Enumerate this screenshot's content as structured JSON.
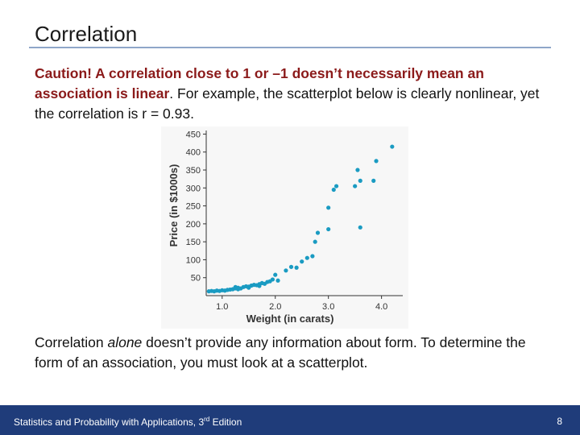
{
  "slide": {
    "title": "Correlation",
    "para1_bold": "Caution! A correlation close to 1 or –1 doesn’t necessarily mean an association is linear",
    "para1_rest": ". For example, the scatterplot below is clearly nonlinear, yet the correlation is r = 0.93.",
    "para2_a": "Correlation ",
    "para2_em": "alone",
    "para2_b": " doesn’t provide any information about form. To determine the form of an association, you must look at a scatterplot."
  },
  "footer": {
    "text_main": "Statistics and Probability with Applications, 3",
    "text_sup": "rd",
    "text_end": " Edition",
    "page": "8"
  },
  "colors": {
    "accent": "#1f3c7a",
    "caution": "#8b1a1a",
    "points": "#1a9bc2"
  },
  "chart_data": {
    "type": "scatter",
    "xlabel": "Weight (in carats)",
    "ylabel": "Price (in $1000s)",
    "x_ticks": [
      1.0,
      2.0,
      3.0,
      4.0
    ],
    "x_tick_labels": [
      "1.0",
      "2.0",
      "3.0",
      "4.0"
    ],
    "y_ticks": [
      50,
      100,
      150,
      200,
      250,
      300,
      350,
      400,
      450
    ],
    "y_tick_labels": [
      "50",
      "100",
      "150",
      "200",
      "250",
      "300",
      "350",
      "400",
      "450"
    ],
    "xlim": [
      0.7,
      4.4
    ],
    "ylim": [
      0,
      460
    ],
    "grid": false,
    "points": [
      {
        "x": 0.75,
        "y": 12
      },
      {
        "x": 0.8,
        "y": 13
      },
      {
        "x": 0.85,
        "y": 12
      },
      {
        "x": 0.9,
        "y": 14
      },
      {
        "x": 0.95,
        "y": 13
      },
      {
        "x": 1.0,
        "y": 15
      },
      {
        "x": 1.05,
        "y": 14
      },
      {
        "x": 1.1,
        "y": 16
      },
      {
        "x": 1.2,
        "y": 18
      },
      {
        "x": 1.25,
        "y": 20
      },
      {
        "x": 1.3,
        "y": 22
      },
      {
        "x": 1.35,
        "y": 20
      },
      {
        "x": 1.4,
        "y": 24
      },
      {
        "x": 1.45,
        "y": 26
      },
      {
        "x": 1.5,
        "y": 25
      },
      {
        "x": 1.55,
        "y": 28
      },
      {
        "x": 1.6,
        "y": 30
      },
      {
        "x": 1.65,
        "y": 29
      },
      {
        "x": 1.7,
        "y": 32
      },
      {
        "x": 1.75,
        "y": 35
      },
      {
        "x": 1.8,
        "y": 33
      },
      {
        "x": 1.85,
        "y": 38
      },
      {
        "x": 1.9,
        "y": 40
      },
      {
        "x": 1.95,
        "y": 45
      },
      {
        "x": 2.0,
        "y": 58
      },
      {
        "x": 2.2,
        "y": 70
      },
      {
        "x": 2.3,
        "y": 80
      },
      {
        "x": 2.4,
        "y": 78
      },
      {
        "x": 2.5,
        "y": 95
      },
      {
        "x": 2.6,
        "y": 105
      },
      {
        "x": 2.7,
        "y": 110
      },
      {
        "x": 2.75,
        "y": 150
      },
      {
        "x": 2.8,
        "y": 175
      },
      {
        "x": 3.0,
        "y": 185
      },
      {
        "x": 3.1,
        "y": 295
      },
      {
        "x": 3.15,
        "y": 305
      },
      {
        "x": 3.5,
        "y": 305
      },
      {
        "x": 3.55,
        "y": 350
      },
      {
        "x": 3.6,
        "y": 320
      },
      {
        "x": 3.85,
        "y": 320
      },
      {
        "x": 3.9,
        "y": 375
      },
      {
        "x": 4.2,
        "y": 415
      },
      {
        "x": 3.6,
        "y": 190
      },
      {
        "x": 3.0,
        "y": 245
      },
      {
        "x": 1.3,
        "y": 18
      },
      {
        "x": 1.7,
        "y": 27
      },
      {
        "x": 1.5,
        "y": 22
      },
      {
        "x": 2.05,
        "y": 42
      },
      {
        "x": 1.15,
        "y": 17
      },
      {
        "x": 1.25,
        "y": 24
      }
    ]
  }
}
